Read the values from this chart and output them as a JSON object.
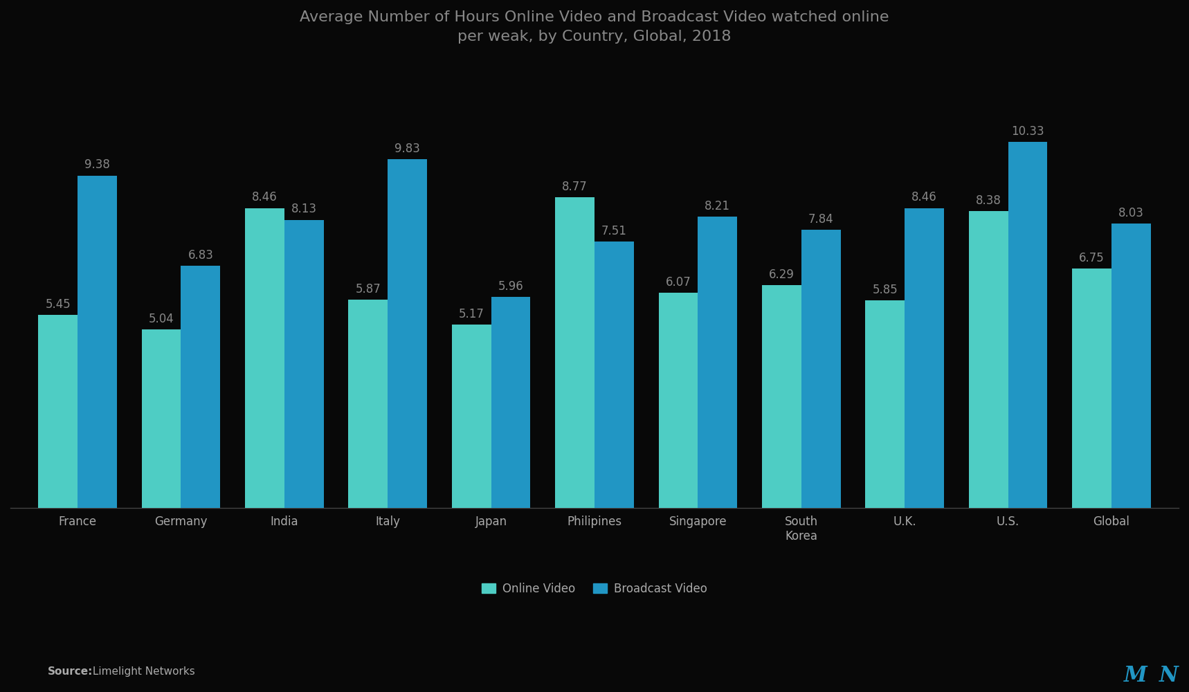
{
  "title": "Average Number of Hours Online Video and Broadcast Video watched online\nper weak, by Country, Global, 2018",
  "categories": [
    "France",
    "Germany",
    "India",
    "Italy",
    "Japan",
    "Philipines",
    "Singapore",
    "South\nKorea",
    "U.K.",
    "U.S.",
    "Global"
  ],
  "online_video": [
    5.45,
    5.04,
    8.46,
    5.87,
    5.17,
    8.77,
    6.07,
    6.29,
    5.85,
    8.38,
    6.75
  ],
  "broadcast_video": [
    9.38,
    6.83,
    8.13,
    9.83,
    5.96,
    7.51,
    8.21,
    7.84,
    8.46,
    10.33,
    8.03
  ],
  "online_video_color": "#4ecdc4",
  "broadcast_video_color": "#2196c4",
  "background_color": "#080808",
  "text_color": "#aaaaaa",
  "title_color": "#888888",
  "bar_value_color": "#888888",
  "source_label": "Source:",
  "source_text": " Limelight Networks",
  "legend_online": "Online Video",
  "legend_broadcast": "Broadcast Video",
  "ylim": [
    0,
    12.5
  ],
  "bar_width": 0.38,
  "title_fontsize": 16,
  "label_fontsize": 12,
  "value_fontsize": 12,
  "source_fontsize": 11
}
